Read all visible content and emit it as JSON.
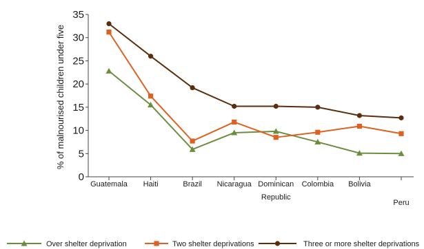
{
  "chart_data": {
    "type": "line",
    "categories": [
      [
        "Guatemala"
      ],
      [
        "Haiti"
      ],
      [
        "Brazil"
      ],
      [
        "Nicaragua"
      ],
      [
        "Dominican",
        "Republic"
      ],
      [
        "Colombia"
      ],
      [
        "Bolivia"
      ],
      [
        "Peru"
      ]
    ],
    "ylabel": "% of malnourised children under five",
    "ylim": [
      0,
      35
    ],
    "yticks": [
      0,
      5,
      10,
      15,
      20,
      25,
      30,
      35
    ],
    "grid": false,
    "legend_position": "bottom",
    "series": [
      {
        "name": "Over shelter deprivation",
        "color": "#6b8e3e",
        "marker": "triangle",
        "values": [
          22.8,
          15.5,
          5.9,
          9.5,
          9.8,
          7.5,
          5.1,
          5.0
        ]
      },
      {
        "name": "Two shelter deprivations",
        "color": "#e0611f",
        "marker": "square",
        "values": [
          31.2,
          17.4,
          7.7,
          11.8,
          8.5,
          9.6,
          10.9,
          9.3
        ]
      },
      {
        "name": "Three or more shelter deprivations",
        "color": "#5a2d0c",
        "marker": "circle",
        "values": [
          33.0,
          26.0,
          19.2,
          15.2,
          15.2,
          15.0,
          13.2,
          12.7
        ]
      }
    ]
  }
}
